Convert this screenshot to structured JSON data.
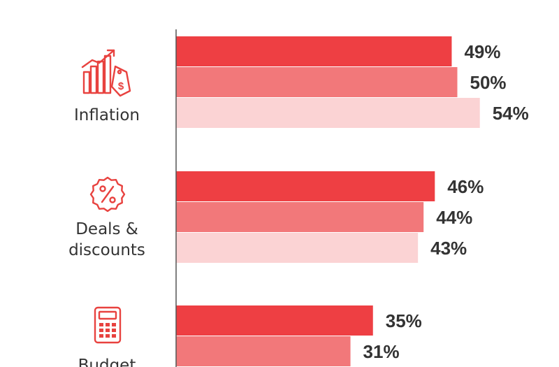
{
  "colors": {
    "series_dark": "#ee3f43",
    "series_mid": "#f2787a",
    "series_light": "#fbd3d4",
    "icon": "#e8423f",
    "axis": "#555555",
    "text": "#333333"
  },
  "chart_data": {
    "type": "bar",
    "orientation": "horizontal",
    "categories": [
      "Inflation",
      "Deals & discounts",
      "Budget"
    ],
    "category_lines": [
      [
        "Inflation"
      ],
      [
        "Deals &",
        "discounts"
      ],
      [
        "Budget"
      ]
    ],
    "category_icons": [
      "price-tag-chart-icon",
      "percent-badge-icon",
      "calculator-icon"
    ],
    "series": [
      {
        "values": [
          49,
          46,
          35
        ],
        "color": "#ee3f43"
      },
      {
        "values": [
          50,
          44,
          31
        ],
        "color": "#f2787a"
      },
      {
        "values": [
          54,
          43,
          null
        ],
        "color": "#fbd3d4"
      }
    ],
    "value_labels": [
      [
        "49%",
        "46%",
        "35%"
      ],
      [
        "50%",
        "44%",
        "31%"
      ],
      [
        "54%",
        "43%",
        ""
      ]
    ],
    "xlim": [
      0,
      100
    ],
    "grid": false,
    "legend": "none"
  }
}
